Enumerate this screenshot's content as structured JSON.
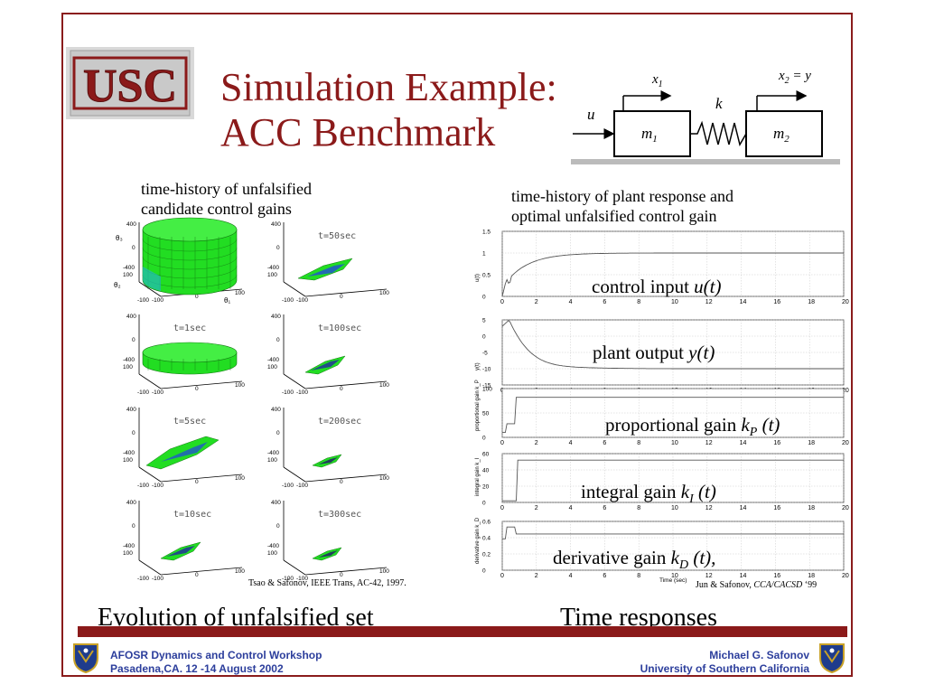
{
  "slide": {
    "title_line1": "Simulation Example:",
    "title_line2": "ACC Benchmark",
    "logo_text": "USC",
    "colors": {
      "title": "#8b1a1a",
      "bar": "#8b1a1a",
      "footer_text": "#2c3e9c",
      "surface": "#22dd22"
    }
  },
  "diagram": {
    "u": "u",
    "x1_main": "x",
    "x1_sub": "1",
    "x2_main": "x",
    "x2_sub": "2",
    "x2_rest": " = y",
    "k": "k",
    "m1_main": "m",
    "m1_sub": "1",
    "m2_main": "m",
    "m2_sub": "2"
  },
  "left_panel": {
    "caption_line1": "time-history of unfalsified",
    "caption_line2": "candidate control gains",
    "axis": {
      "theta3": "θ₃",
      "theta2": "θ₂",
      "theta1": "θ₁",
      "z400": "400",
      "z0": "0",
      "zm400": "-400",
      "y100": "100",
      "ym100": "-100",
      "x0": "0",
      "x100": "100",
      "xm100": "-100"
    },
    "plots": [
      {
        "label": "",
        "shape": "cylinder"
      },
      {
        "label": "t=50sec",
        "shape": "sliver"
      },
      {
        "label": "t=1sec",
        "shape": "disk"
      },
      {
        "label": "t=100sec",
        "shape": "small"
      },
      {
        "label": "t=5sec",
        "shape": "blade"
      },
      {
        "label": "t=200sec",
        "shape": "tiny"
      },
      {
        "label": "t=10sec",
        "shape": "small"
      },
      {
        "label": "t=300sec",
        "shape": "tiny"
      }
    ],
    "citation": "Tsao & Safonov, IEEE Trans, AC-42, 1997.",
    "bottom_title": "Evolution of unfalsified set"
  },
  "right_panel": {
    "caption_line1": "time-history of plant response and",
    "caption_line2": "optimal unfalsified control gain",
    "x_ticks": [
      "0",
      "2",
      "4",
      "6",
      "8",
      "10",
      "12",
      "14",
      "16",
      "18",
      "20"
    ],
    "x_label": "Time (sec)",
    "subplots": [
      {
        "ylabel": "u(t)",
        "yticks": [
          "1.5",
          "1",
          "0.5",
          "0"
        ],
        "overlay_main": "control input ",
        "overlay_ital": "u(t)",
        "overlay_sub": "",
        "overlay_end": ""
      },
      {
        "ylabel": "y(t)",
        "yticks": [
          "5",
          "0",
          "-5",
          "-10",
          "-15"
        ],
        "overlay_main": "plant output ",
        "overlay_ital": "y(t)",
        "overlay_sub": "",
        "overlay_end": ""
      },
      {
        "ylabel": "proportional gain k_P",
        "yticks": [
          "100",
          "50",
          "0"
        ],
        "overlay_main": "proportional gain ",
        "overlay_ital": "k",
        "overlay_sub": "P",
        "overlay_end": " (t)"
      },
      {
        "ylabel": "integral gain k_I",
        "yticks": [
          "60",
          "40",
          "20",
          "0"
        ],
        "overlay_main": "integral gain ",
        "overlay_ital": "k",
        "overlay_sub": "I",
        "overlay_end": " (t)"
      },
      {
        "ylabel": "derivative gain k_D",
        "yticks": [
          "0.6",
          "0.4",
          "0.2",
          "0"
        ],
        "overlay_main": "derivative gain ",
        "overlay_ital": "k",
        "overlay_sub": "D",
        "overlay_end": " (t),"
      }
    ],
    "citation_plain": "Jun & Safonov, ",
    "citation_ital": "CCA/CACSD",
    "citation_end": " ‘99",
    "bottom_title": "Time responses"
  },
  "footer": {
    "left_line1": "AFOSR Dynamics and Control Workshop",
    "left_line2": "Pasadena,CA.  12 -14 August 2002",
    "right_line1": "Michael G. Safonov",
    "right_line2": "University of Southern California",
    "emblem_icon": "air-force-shield-icon"
  }
}
